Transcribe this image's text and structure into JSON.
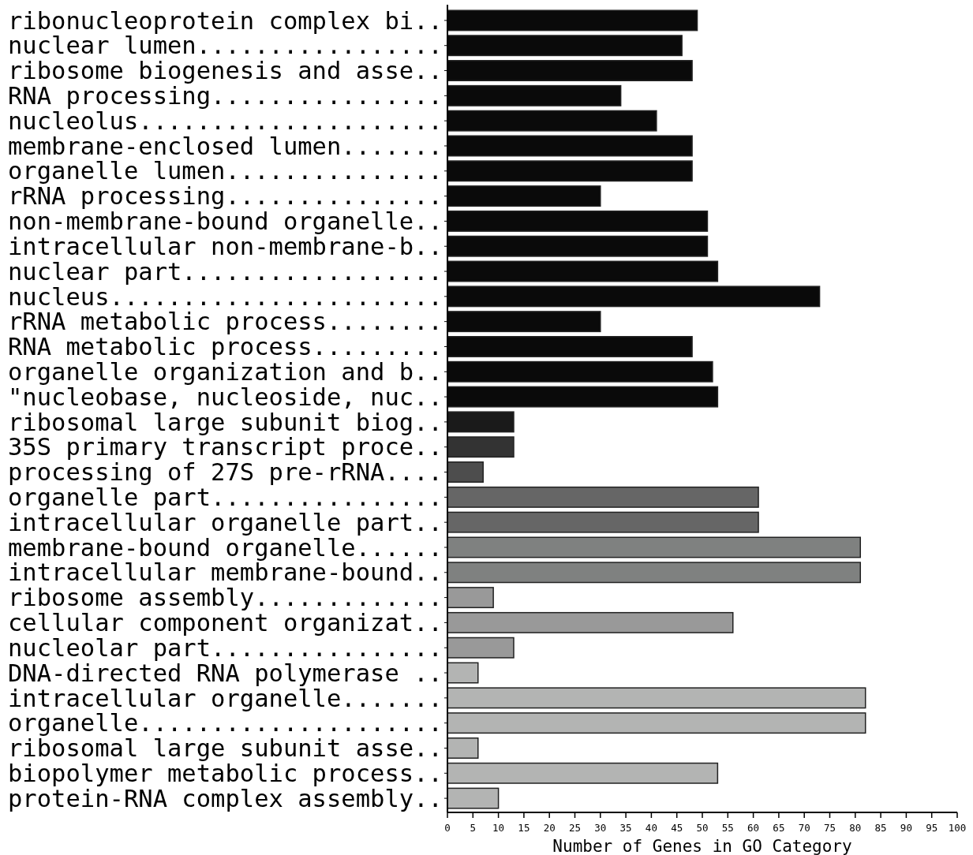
{
  "chart_data": {
    "type": "bar",
    "orientation": "horizontal",
    "xlabel": "Number of Genes in GO Category",
    "categories": [
      "ribonucleoprotein complex bi..",
      "nuclear lumen.................",
      "ribosome biogenesis and asse..",
      "RNA processing................",
      "nucleolus.....................",
      "membrane-enclosed lumen.......",
      "organelle lumen...............",
      "rRNA processing...............",
      "non-membrane-bound organelle..",
      "intracellular non-membrane-b..",
      "nuclear part..................",
      "nucleus.......................",
      "rRNA metabolic process........",
      "RNA metabolic process.........",
      "organelle organization and b..",
      "\"nucleobase, nucleoside, nuc..",
      "ribosomal large subunit biog..",
      "35S primary transcript proce..",
      "processing of 27S pre-rRNA....",
      "organelle part................",
      "intracellular organelle part..",
      "membrane-bound organelle......",
      "intracellular membrane-bound..",
      "ribosome assembly.............",
      "cellular component organizat..",
      "nucleolar part................",
      "DNA-directed RNA polymerase ..",
      "intracellular organelle.......",
      "organelle.....................",
      "ribosomal large subunit asse..",
      "biopolymer metabolic process..",
      "protein-RNA complex assembly.."
    ],
    "values": [
      49,
      46,
      48,
      34,
      41,
      48,
      48,
      30,
      51,
      51,
      53,
      73,
      30,
      48,
      52,
      53,
      13,
      13,
      7,
      61,
      61,
      81,
      81,
      9,
      56,
      13,
      6,
      82,
      82,
      6,
      53,
      10
    ],
    "colors": [
      "#0a0a0a",
      "#0a0a0a",
      "#0a0a0a",
      "#0a0a0a",
      "#0a0a0a",
      "#0a0a0a",
      "#0a0a0a",
      "#0a0a0a",
      "#0a0a0a",
      "#0a0a0a",
      "#0a0a0a",
      "#0a0a0a",
      "#0a0a0a",
      "#0a0a0a",
      "#0a0a0a",
      "#0a0a0a",
      "#1a1a1a",
      "#333333",
      "#4d4d4d",
      "#666666",
      "#666666",
      "#7f8180",
      "#7f8180",
      "#999999",
      "#999999",
      "#999999",
      "#b3b4b3",
      "#b3b4b3",
      "#b3b4b3",
      "#b3b4b3",
      "#b3b4b3",
      "#b3b4b3"
    ],
    "xlim": [
      0,
      100
    ],
    "xticks": [
      0,
      5,
      10,
      15,
      20,
      25,
      30,
      35,
      40,
      45,
      50,
      55,
      60,
      65,
      70,
      75,
      80,
      85,
      90,
      95,
      100
    ],
    "grid": false
  }
}
